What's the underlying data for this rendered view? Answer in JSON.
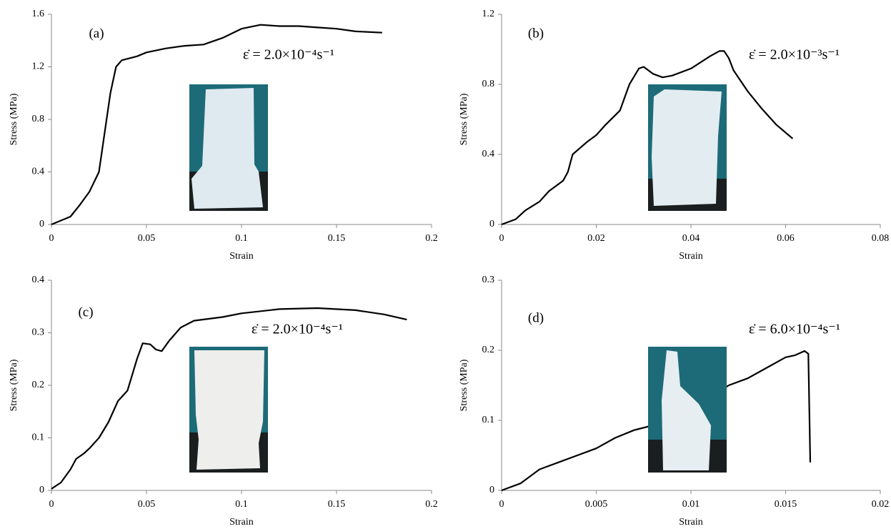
{
  "chart_data": [
    {
      "type": "line",
      "title": "(a)",
      "annotation": "ε̇ = 2.0×10⁻⁴s⁻¹",
      "xlabel": "Strain",
      "ylabel": "Stress (MPa)",
      "x": [
        0,
        0.005,
        0.01,
        0.015,
        0.02,
        0.025,
        0.028,
        0.031,
        0.034,
        0.037,
        0.045,
        0.05,
        0.06,
        0.07,
        0.08,
        0.09,
        0.1,
        0.11,
        0.12,
        0.13,
        0.14,
        0.15,
        0.16,
        0.174
      ],
      "values": [
        0,
        0.03,
        0.06,
        0.15,
        0.25,
        0.4,
        0.7,
        1.0,
        1.2,
        1.25,
        1.28,
        1.31,
        1.34,
        1.36,
        1.37,
        1.42,
        1.49,
        1.52,
        1.51,
        1.51,
        1.5,
        1.49,
        1.47,
        1.46
      ],
      "color": "#000000",
      "xlim": [
        0,
        0.2
      ],
      "ylim": [
        0,
        1.6
      ],
      "xticks": [
        0,
        0.05,
        0.1,
        0.15,
        0.2
      ],
      "yticks": [
        0,
        0.4,
        0.8,
        1.2,
        1.6
      ]
    },
    {
      "type": "line",
      "title": "(b)",
      "annotation": "ε̇ = 2.0×10⁻³s⁻¹",
      "xlabel": "Strain",
      "ylabel": "Stress (MPa)",
      "x": [
        0,
        0.003,
        0.005,
        0.008,
        0.01,
        0.013,
        0.014,
        0.015,
        0.018,
        0.02,
        0.022,
        0.025,
        0.027,
        0.029,
        0.03,
        0.032,
        0.034,
        0.036,
        0.04,
        0.044,
        0.046,
        0.047,
        0.048,
        0.049,
        0.052,
        0.055,
        0.058,
        0.0615
      ],
      "values": [
        0,
        0.03,
        0.08,
        0.13,
        0.19,
        0.25,
        0.3,
        0.4,
        0.47,
        0.51,
        0.57,
        0.65,
        0.8,
        0.89,
        0.9,
        0.86,
        0.84,
        0.85,
        0.89,
        0.96,
        0.99,
        0.99,
        0.95,
        0.88,
        0.76,
        0.66,
        0.57,
        0.49
      ],
      "color": "#000000",
      "xlim": [
        0,
        0.08
      ],
      "ylim": [
        0,
        1.2
      ],
      "xticks": [
        0,
        0.02,
        0.04,
        0.06,
        0.08
      ],
      "yticks": [
        0,
        0.4,
        0.8,
        1.2
      ]
    },
    {
      "type": "line",
      "title": "(c)",
      "annotation": "ε̇ = 2.0×10⁻⁴s⁻¹",
      "xlabel": "Strain",
      "ylabel": "Stress (MPa)",
      "x": [
        0,
        0.005,
        0.01,
        0.013,
        0.017,
        0.02,
        0.025,
        0.03,
        0.035,
        0.04,
        0.045,
        0.048,
        0.052,
        0.055,
        0.058,
        0.062,
        0.068,
        0.075,
        0.09,
        0.1,
        0.12,
        0.14,
        0.16,
        0.175,
        0.187
      ],
      "values": [
        0.003,
        0.015,
        0.04,
        0.06,
        0.07,
        0.08,
        0.1,
        0.13,
        0.17,
        0.19,
        0.25,
        0.28,
        0.278,
        0.268,
        0.265,
        0.285,
        0.31,
        0.323,
        0.33,
        0.337,
        0.345,
        0.347,
        0.343,
        0.335,
        0.325
      ],
      "color": "#000000",
      "xlim": [
        0,
        0.2
      ],
      "ylim": [
        0,
        0.4
      ],
      "xticks": [
        0,
        0.05,
        0.1,
        0.15,
        0.2
      ],
      "yticks": [
        0,
        0.1,
        0.2,
        0.3,
        0.4
      ]
    },
    {
      "type": "line",
      "title": "(d)",
      "annotation": "ε̇ = 6.0×10⁻⁴s⁻¹",
      "xlabel": "Strain",
      "ylabel": "Stress (MPa)",
      "x": [
        0,
        0.001,
        0.002,
        0.003,
        0.004,
        0.005,
        0.006,
        0.007,
        0.008,
        0.009,
        0.012,
        0.013,
        0.014,
        0.015,
        0.0155,
        0.016,
        0.0162,
        0.0163
      ],
      "values": [
        0,
        0.01,
        0.03,
        0.04,
        0.05,
        0.06,
        0.075,
        0.086,
        0.093,
        0.1,
        0.15,
        0.16,
        0.175,
        0.19,
        0.193,
        0.199,
        0.195,
        0.04
      ],
      "color": "#000000",
      "xlim": [
        0,
        0.02
      ],
      "ylim": [
        0,
        0.3
      ],
      "xticks": [
        0,
        0.005,
        0.01,
        0.015,
        0.02
      ],
      "yticks": [
        0,
        0.1,
        0.2,
        0.3
      ]
    }
  ]
}
